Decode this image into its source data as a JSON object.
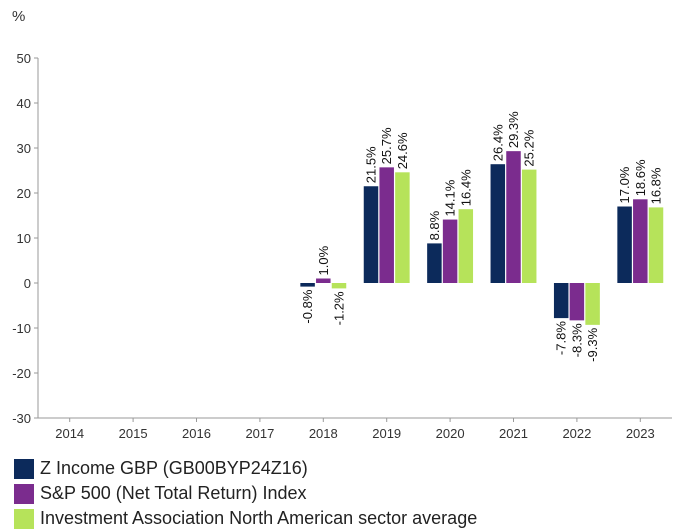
{
  "chart_data": {
    "type": "bar",
    "unit_label": "%",
    "ylim": [
      -30,
      50
    ],
    "yticks": [
      -30,
      -20,
      -10,
      0,
      10,
      20,
      30,
      40,
      50
    ],
    "categories": [
      "2014",
      "2015",
      "2016",
      "2017",
      "2018",
      "2019",
      "2020",
      "2021",
      "2022",
      "2023"
    ],
    "series": [
      {
        "name": "Z Income GBP (GB00BYP24Z16)",
        "color": "#0c2a5b",
        "values": [
          null,
          null,
          null,
          null,
          -0.8,
          21.5,
          8.8,
          26.4,
          -7.8,
          17.0
        ],
        "labels": [
          "",
          "",
          "",
          "",
          "-0.8%",
          "21.5%",
          "8.8%",
          "26.4%",
          "-7.8%",
          "17.0%"
        ]
      },
      {
        "name": "S&P 500 (Net Total Return) Index",
        "color": "#7b2c8e",
        "values": [
          null,
          null,
          null,
          null,
          1.0,
          25.7,
          14.1,
          29.3,
          -8.3,
          18.6
        ],
        "labels": [
          "",
          "",
          "",
          "",
          "1.0%",
          "25.7%",
          "14.1%",
          "29.3%",
          "-8.3%",
          "18.6%"
        ]
      },
      {
        "name": "Investment Association North American sector average",
        "color": "#b6e35a",
        "values": [
          null,
          null,
          null,
          null,
          -1.2,
          24.6,
          16.4,
          25.2,
          -9.3,
          16.8
        ],
        "labels": [
          "",
          "",
          "",
          "",
          "-1.2%",
          "24.6%",
          "16.4%",
          "25.2%",
          "-9.3%",
          "16.8%"
        ]
      }
    ],
    "legend_position": "bottom",
    "grid": false
  }
}
